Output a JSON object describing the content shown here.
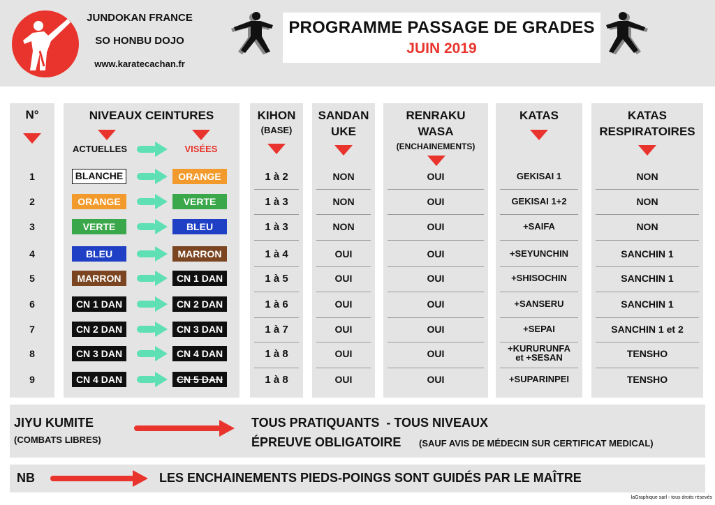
{
  "header": {
    "club_name": "JUNDOKAN FRANCE",
    "dojo_name": "SO HONBU DOJO",
    "website": "www.karatecachan.fr",
    "title": "PROGRAMME PASSAGE DE GRADES",
    "subtitle": "JUIN 2019",
    "icons": [
      "karate-logo-icon",
      "karate-silhouette-icon"
    ]
  },
  "columns": {
    "num": "N°",
    "niveaux": "NIVEAUX CEINTURES",
    "actuelles": "ACTUELLES",
    "visees": "VISÉES",
    "kihon": "KIHON",
    "kihon_sub": "(BASE)",
    "sandan_1": "SANDAN",
    "sandan_2": "UKE",
    "renraku_1": "RENRAKU",
    "renraku_2": "WASA",
    "renraku_sub": "(ENCHAINEMENTS)",
    "katas": "KATAS",
    "resp_1": "KATAS",
    "resp_2": "RESPIRATOIRES"
  },
  "rows": [
    {
      "num": "1",
      "current": "BLANCHE",
      "target": "ORANGE",
      "kihon": "1 à 2",
      "sandan": "NON",
      "renraku": "OUI",
      "kata": "GEKISAI 1",
      "kata2": "",
      "resp": "NON"
    },
    {
      "num": "2",
      "current": "ORANGE",
      "target": "VERTE",
      "kihon": "1 à 3",
      "sandan": "NON",
      "renraku": "OUI",
      "kata": "GEKISAI 1+2",
      "kata2": "",
      "resp": "NON"
    },
    {
      "num": "3",
      "current": "VERTE",
      "target": "BLEU",
      "kihon": "1 à 3",
      "sandan": "NON",
      "renraku": "OUI",
      "kata": "+SAIFA",
      "kata2": "",
      "resp": "NON"
    },
    {
      "num": "4",
      "current": "BLEU",
      "target": "MARRON",
      "kihon": "1 à 4",
      "sandan": "OUI",
      "renraku": "OUI",
      "kata": "+SEYUNCHIN",
      "kata2": "",
      "resp": "SANCHIN 1"
    },
    {
      "num": "5",
      "current": "MARRON",
      "target": "CN 1 DAN",
      "kihon": "1 à 5",
      "sandan": "OUI",
      "renraku": "OUI",
      "kata": "+SHISOCHIN",
      "kata2": "",
      "resp": "SANCHIN 1"
    },
    {
      "num": "6",
      "current": "CN 1 DAN",
      "target": "CN 2 DAN",
      "kihon": "1 à 6",
      "sandan": "OUI",
      "renraku": "OUI",
      "kata": "+SANSERU",
      "kata2": "",
      "resp": "SANCHIN 1"
    },
    {
      "num": "7",
      "current": "CN 2 DAN",
      "target": "CN 3 DAN",
      "kihon": "1 à 7",
      "sandan": "OUI",
      "renraku": "OUI",
      "kata": "+SEPAI",
      "kata2": "",
      "resp": "SANCHIN 1 et 2"
    },
    {
      "num": "8",
      "current": "CN 3 DAN",
      "target": "CN 4 DAN",
      "kihon": "1 à 8",
      "sandan": "OUI",
      "renraku": "OUI",
      "kata": "+KURURUNFA",
      "kata2": "et +SESAN",
      "resp": "TENSHO"
    },
    {
      "num": "9",
      "current": "CN 4 DAN",
      "target": "CN 5 DAN",
      "kihon": "1 à 8",
      "sandan": "OUI",
      "renraku": "OUI",
      "kata": "+SUPARINPEI",
      "kata2": "",
      "resp": "TENSHO"
    }
  ],
  "belt_colors": {
    "BLANCHE": "#ffffff",
    "ORANGE": "#f39a2c",
    "VERTE": "#3aa84a",
    "BLEU": "#1f3fc4",
    "MARRON": "#7a4520",
    "DAN": "#0f0f0f"
  },
  "jiyu": {
    "label": "JIYU KUMITE",
    "sub": "(COMBATS LIBRES)",
    "line1": "TOUS PRATIQUANTS  - TOUS NIVEAUX",
    "line2": "ÉPREUVE OBLIGATOIRE",
    "note": "(SAUF AVIS DE MÉDECIN SUR CERTIFICAT MEDICAL)"
  },
  "nb": {
    "label": "NB",
    "text": "LES ENCHAINEMENTS PIEDS-POINGS SONT GUIDÉS PAR LE MAÎTRE"
  },
  "credit": "laGraphique sarl - tous droits résevés",
  "accent_red": "#e8342c",
  "arrow_teal": "#5fe0b4"
}
